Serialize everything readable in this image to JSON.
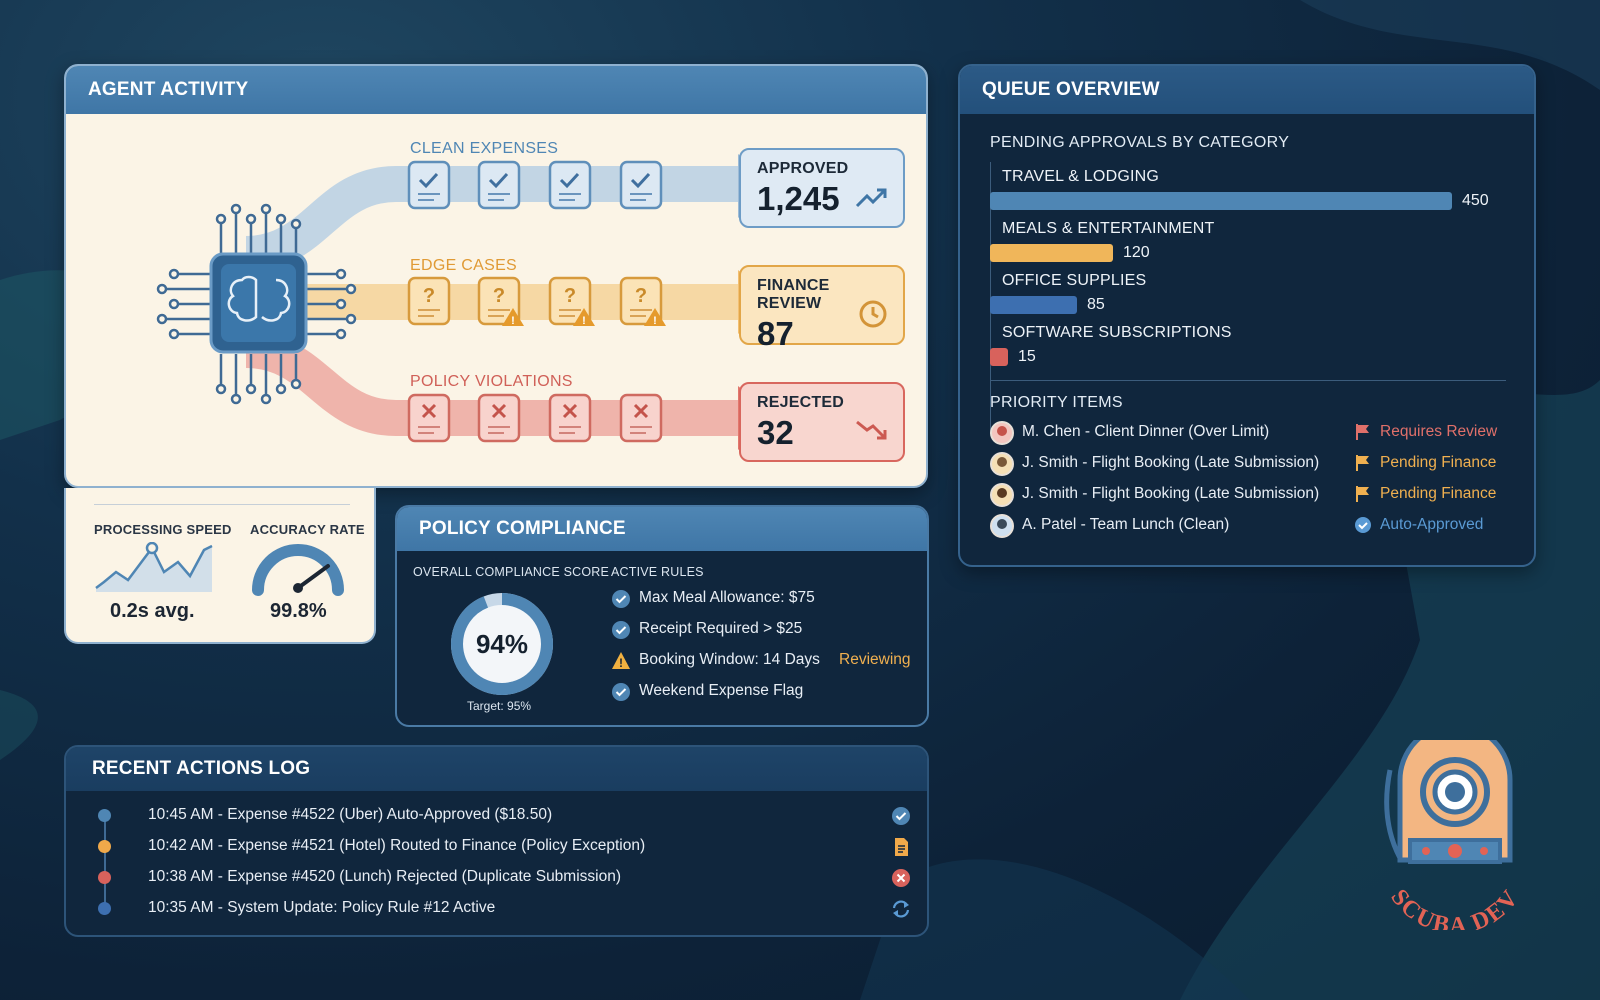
{
  "agent_activity": {
    "title": "AGENT ACTIVITY",
    "lanes": [
      {
        "label": "CLEAN EXPENSES",
        "color": "#4f86b4"
      },
      {
        "label": "EDGE CASES",
        "color": "#e7a43a"
      },
      {
        "label": "POLICY VIOLATIONS",
        "color": "#d8625c"
      }
    ],
    "results": [
      {
        "label": "APPROVED",
        "value": "1,245",
        "icon": "trend-up-icon"
      },
      {
        "label": "FINANCE REVIEW",
        "value": "87",
        "icon": "clock-icon"
      },
      {
        "label": "REJECTED",
        "value": "32",
        "icon": "trend-down-icon"
      }
    ]
  },
  "metrics": {
    "speed_label": "PROCESSING SPEED",
    "speed_value": "0.2s avg.",
    "accuracy_label": "ACCURACY RATE",
    "accuracy_value": "99.8%"
  },
  "compliance": {
    "title": "POLICY COMPLIANCE",
    "score_label": "OVERALL COMPLIANCE SCORE",
    "score_value": "94%",
    "score_fraction": 0.94,
    "target": "Target: 95%",
    "rules_label": "ACTIVE RULES",
    "rules": [
      {
        "text": "Max Meal Allowance: $75",
        "status": "ok"
      },
      {
        "text": "Receipt Required > $25",
        "status": "ok"
      },
      {
        "text": "Booking Window: 14 Days",
        "status": "warning",
        "note": "Reviewing"
      },
      {
        "text": "Weekend Expense Flag",
        "status": "ok"
      }
    ]
  },
  "queue": {
    "title": "QUEUE OVERVIEW",
    "pending_label": "PENDING APPROVALS BY CATEGORY",
    "categories": [
      {
        "label": "TRAVEL & LODGING",
        "value": 450,
        "color": "#4f86b4"
      },
      {
        "label": "MEALS & ENTERTAINMENT",
        "value": 120,
        "color": "#f0b65a"
      },
      {
        "label": "OFFICE SUPPLIES",
        "value": 85,
        "color": "#3d6fb0"
      },
      {
        "label": "SOFTWARE SUBSCRIPTIONS",
        "value": 15,
        "color": "#d8625c"
      }
    ],
    "priority_label": "PRIORITY ITEMS",
    "priority_items": [
      {
        "text": "M. Chen - Client Dinner (Over Limit)",
        "status": "Requires Review",
        "color": "#e0706a",
        "flag": true
      },
      {
        "text": "J. Smith - Flight Booking (Late Submission)",
        "status": "Pending Finance",
        "color": "#f0b050",
        "flag": true
      },
      {
        "text": "J. Smith - Flight Booking (Late Submission)",
        "status": "Pending Finance",
        "color": "#f0b050",
        "flag": true
      },
      {
        "text": "A. Patel - Team Lunch (Clean)",
        "status": "Auto-Approved",
        "color": "#5a9ad4",
        "flag": false
      }
    ]
  },
  "log": {
    "title": "RECENT ACTIONS LOG",
    "entries": [
      {
        "text": "10:45 AM - Expense #4522 (Uber) Auto-Approved ($18.50)",
        "color": "#4f86b4",
        "icon": "check-icon"
      },
      {
        "text": "10:42 AM - Expense #4521 (Hotel) Routed to Finance (Policy Exception)",
        "color": "#f0a94a",
        "icon": "document-icon"
      },
      {
        "text": "10:38 AM - Expense #4520 (Lunch) Rejected (Duplicate Submission)",
        "color": "#d8625c",
        "icon": "x-circle-icon"
      },
      {
        "text": "10:35 AM - System Update: Policy Rule #12 Active",
        "color": "#3d6fb0",
        "icon": "refresh-icon"
      }
    ]
  },
  "logo": {
    "text": "SCUBA DEV"
  }
}
